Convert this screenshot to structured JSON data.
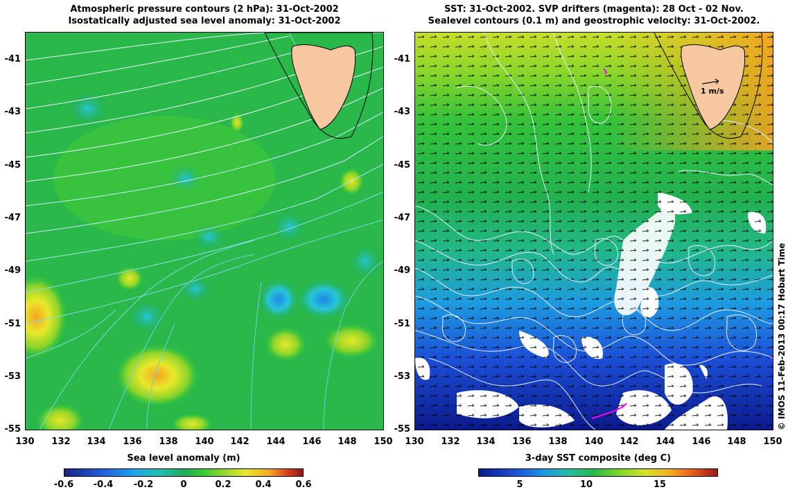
{
  "left_panel": {
    "title_line1": "Atmospheric pressure contours (2 hPa): 31-Oct-2002",
    "title_line2": "Isostatically adjusted sea level anomaly: 31-Oct-2002",
    "colorbar_title": "Sea level anomaly (m)",
    "colorbar_ticks": [
      "-0.6",
      "-0.4",
      "-0.2",
      "0",
      "0.2",
      "0.4",
      "0.6"
    ],
    "colorbar_range": [
      -0.6,
      0.6
    ]
  },
  "right_panel": {
    "title_line1": "SST: 31-Oct-2002. SVP drifters (magenta): 28 Oct - 02 Nov.",
    "title_line2": "Sealevel contours (0.1 m) and geostrophic velocity: 31-Oct-2002.",
    "colorbar_title": "3-day SST composite (deg C)",
    "colorbar_ticks": [
      "5",
      "10",
      "15"
    ],
    "colorbar_tick_values": [
      5,
      10,
      15
    ],
    "colorbar_range": [
      1.5,
      19.5
    ],
    "velocity_scale_label": "1 m/s"
  },
  "axes": {
    "x_ticks": [
      "130",
      "132",
      "134",
      "136",
      "138",
      "140",
      "142",
      "144",
      "146",
      "148",
      "150"
    ],
    "y_ticks": [
      "-41",
      "-43",
      "-45",
      "-47",
      "-49",
      "-51",
      "-53",
      "-55"
    ],
    "lon_range": [
      130,
      150
    ],
    "lat_range": [
      -40.3,
      -55
    ]
  },
  "credit": "© IMOS 11-Feb-2013 00:17 Hobart Time",
  "colors": {
    "land": "#f7c8a0",
    "sla_palette": [
      "#1a237e",
      "#1e88e5",
      "#26c6da",
      "#1faa59",
      "#33cc33",
      "#8bd42a",
      "#e8e82a",
      "#f5a623",
      "#d83a1a",
      "#8b1a1a"
    ],
    "sst_palette": [
      "#0b1a8c",
      "#1c4fd8",
      "#1e9be0",
      "#22c0a0",
      "#22b84a",
      "#7ad62a",
      "#d8e02a",
      "#f5b020",
      "#e65a1a",
      "#9a1a1a"
    ]
  }
}
